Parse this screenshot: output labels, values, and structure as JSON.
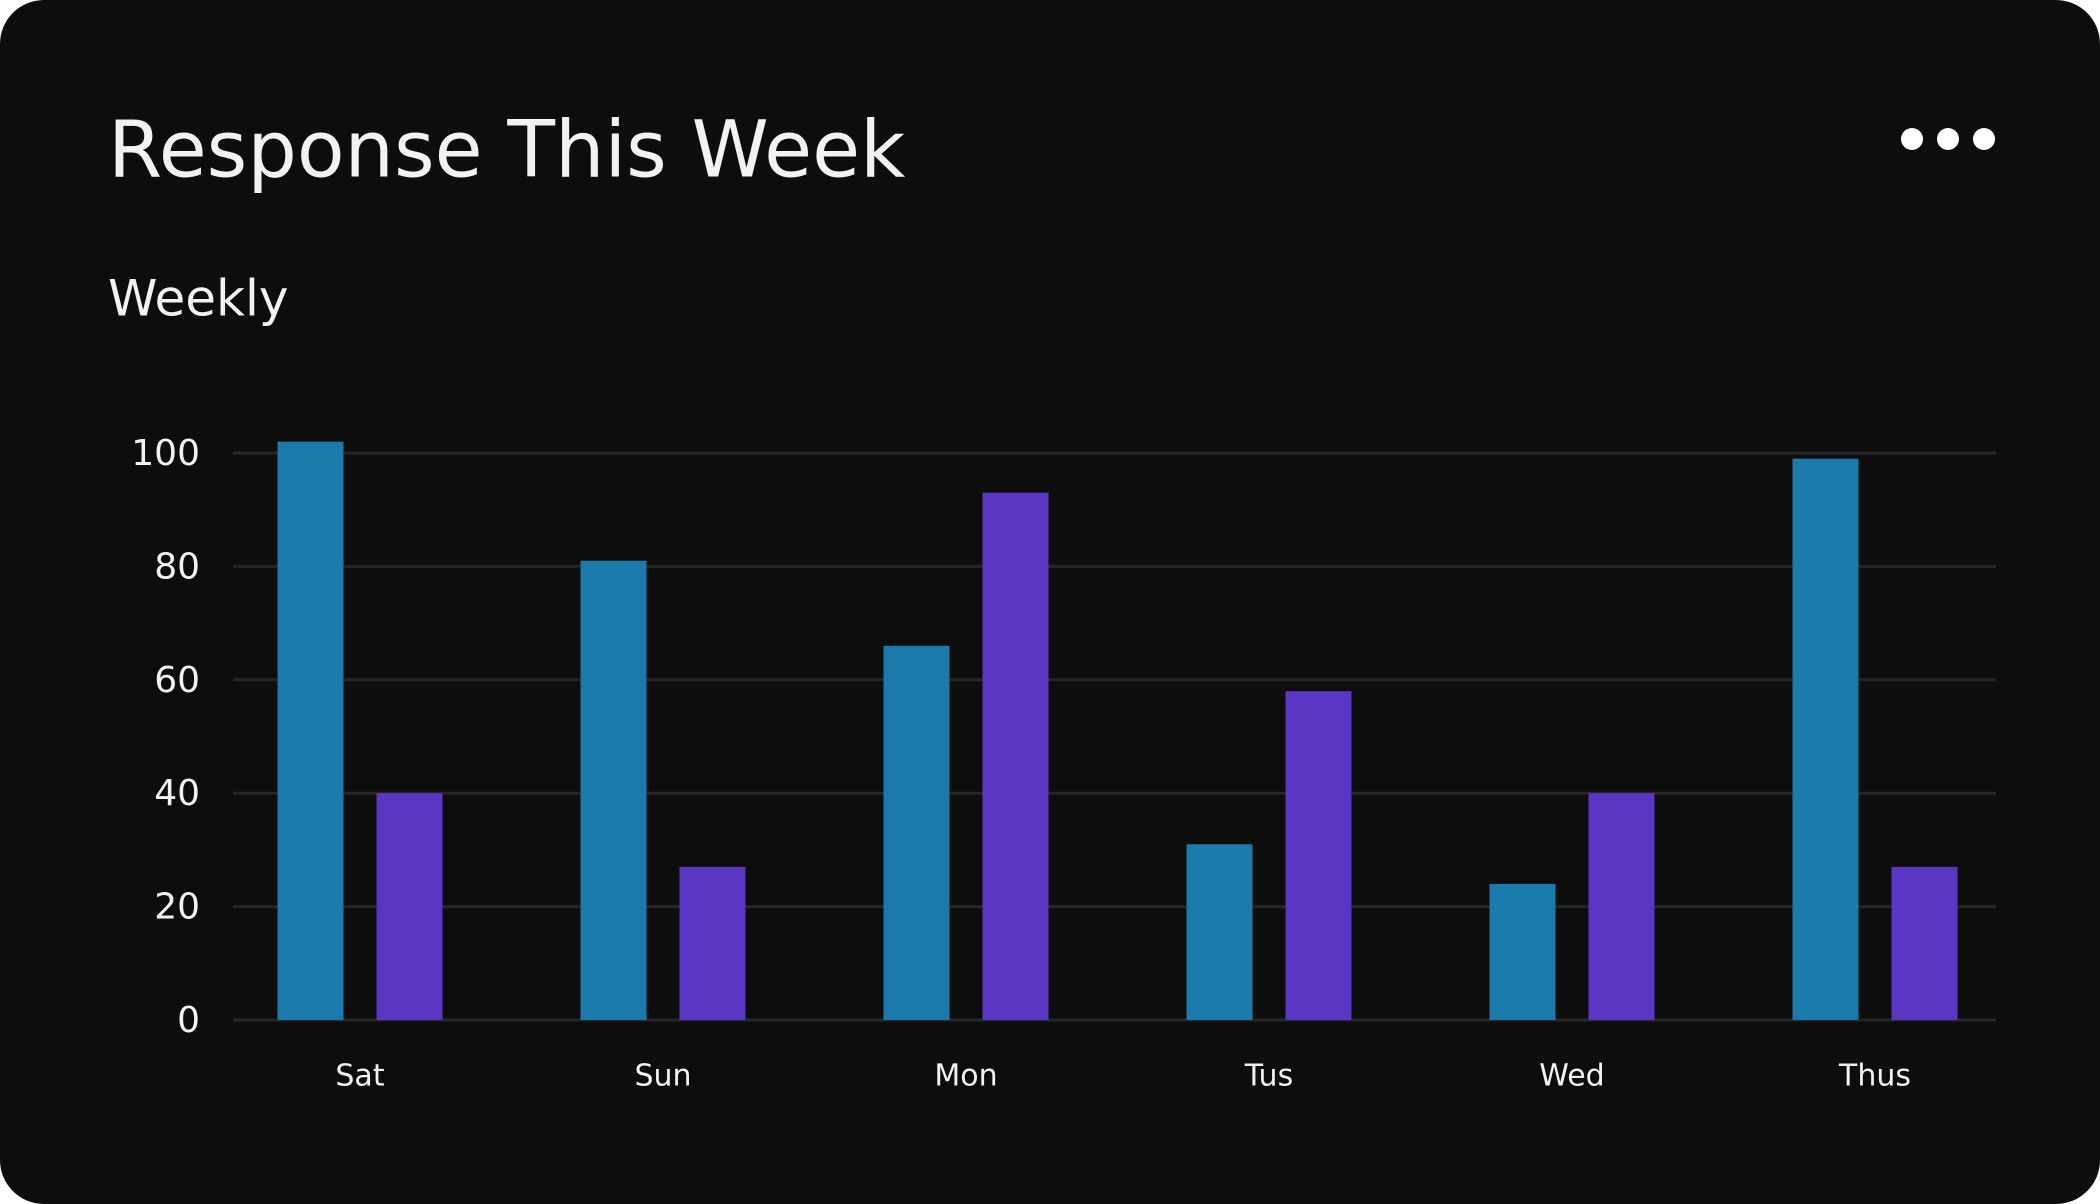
{
  "chart_data": {
    "type": "bar",
    "title": "Response This Week",
    "subtitle": "Weekly",
    "categories": [
      "Sat",
      "Sun",
      "Mon",
      "Tus",
      "Wed",
      "Thus"
    ],
    "series": [
      {
        "color": "#1a7aab",
        "values": [
          102,
          81,
          66,
          31,
          24,
          99
        ]
      },
      {
        "color": "#5b35c3",
        "values": [
          40,
          27,
          93,
          58,
          40,
          27
        ]
      }
    ],
    "ylim": [
      0,
      105
    ],
    "yticks": [
      0,
      20,
      40,
      60,
      80,
      100
    ],
    "grid": true
  }
}
